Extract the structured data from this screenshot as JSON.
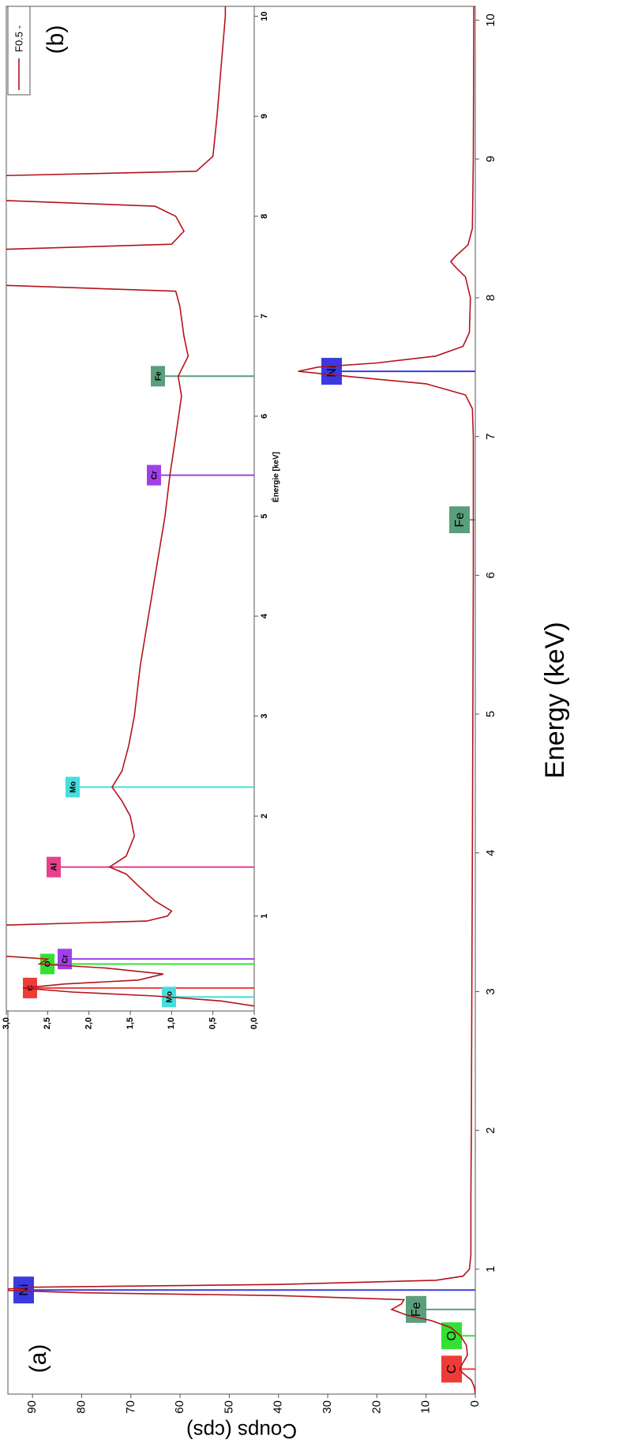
{
  "chart_data": [
    {
      "type": "line",
      "panel_label": "(a)",
      "x_label": "Energy (keV)",
      "y_label": "Coups (cps)",
      "x": [
        0.1,
        0.15,
        0.2,
        0.25,
        0.28,
        0.32,
        0.38,
        0.45,
        0.52,
        0.58,
        0.63,
        0.67,
        0.71,
        0.75,
        0.78,
        0.81,
        0.83,
        0.85,
        0.87,
        0.89,
        0.92,
        0.95,
        1.0,
        1.1,
        1.5,
        2,
        3,
        4,
        5,
        6,
        7,
        7.2,
        7.3,
        7.38,
        7.43,
        7.47,
        7.5,
        7.53,
        7.58,
        7.65,
        7.75,
        8.0,
        8.15,
        8.22,
        8.26,
        8.3,
        8.38,
        8.5,
        9,
        10,
        10.1
      ],
      "series": [
        {
          "color": "#b3141a",
          "values": [
            0,
            0.2,
            0.8,
            2.5,
            3.2,
            2.6,
            1.6,
            1.8,
            3.0,
            5,
            9,
            14,
            17,
            15,
            14.5,
            40,
            80,
            98,
            90,
            40,
            8,
            2.5,
            1.2,
            0.9,
            0.9,
            0.8,
            0.7,
            0.6,
            0.5,
            0.4,
            0.4,
            0.6,
            2,
            10,
            25,
            36,
            32,
            20,
            8,
            2.5,
            1.2,
            1.0,
            2,
            4,
            5,
            4,
            1.5,
            0.6,
            0.4,
            0.3,
            0.3
          ]
        }
      ],
      "xlim": [
        0.1,
        10.1
      ],
      "ylim": [
        0,
        95
      ],
      "xticks": [
        1,
        2,
        3,
        4,
        5,
        6,
        7,
        8,
        9,
        10
      ],
      "yticks": [
        0,
        10,
        20,
        30,
        40,
        50,
        60,
        70,
        80,
        90
      ],
      "markers": [
        {
          "label": "C",
          "energy": 0.28,
          "color": "#ee3b36"
        },
        {
          "label": "O",
          "energy": 0.52,
          "color": "#33e033"
        },
        {
          "label": "Fe",
          "energy": 0.71,
          "color": "#5b9e7c"
        },
        {
          "label": "Ni",
          "energy": 0.85,
          "color": "#3a3ae0"
        },
        {
          "label": "Fe",
          "energy": 6.4,
          "color": "#5b9e7c"
        },
        {
          "label": "Ni",
          "energy": 7.47,
          "color": "#3a3ae0"
        }
      ]
    },
    {
      "type": "line",
      "panel_label": "(b)",
      "x_label": "Énergie [keV]",
      "legend": "top-right",
      "x": [
        0.1,
        0.15,
        0.2,
        0.24,
        0.28,
        0.32,
        0.36,
        0.42,
        0.48,
        0.52,
        0.57,
        0.62,
        0.9,
        0.95,
        1.0,
        1.05,
        1.15,
        1.3,
        1.42,
        1.49,
        1.6,
        1.8,
        2.0,
        2.15,
        2.29,
        2.45,
        2.7,
        3.0,
        3.5,
        4.0,
        4.5,
        5.0,
        5.41,
        5.8,
        6.2,
        6.4,
        6.6,
        6.8,
        7.1,
        7.25,
        7.32,
        7.66,
        7.72,
        7.85,
        8.0,
        8.1,
        8.17,
        8.4,
        8.45,
        8.6,
        9.0,
        9.5,
        10.0,
        10.1
      ],
      "series": [
        {
          "name": "F0.5 -",
          "color": "#b3141a",
          "values": [
            0,
            0.4,
            1.2,
            2.2,
            2.8,
            2.3,
            1.4,
            1.1,
            1.8,
            2.6,
            2.5,
            3.4,
            3.4,
            1.3,
            1.05,
            1.0,
            1.2,
            1.4,
            1.55,
            1.75,
            1.55,
            1.45,
            1.5,
            1.6,
            1.72,
            1.6,
            1.52,
            1.45,
            1.38,
            1.28,
            1.18,
            1.08,
            1.02,
            0.95,
            0.88,
            0.92,
            0.8,
            0.85,
            0.9,
            0.95,
            3.4,
            3.4,
            1.0,
            0.85,
            0.95,
            1.2,
            3.4,
            3.4,
            0.7,
            0.5,
            0.45,
            0.4,
            0.35,
            0.35
          ]
        }
      ],
      "xlim": [
        0.05,
        10.1
      ],
      "ylim": [
        0,
        3
      ],
      "xticks": [
        1,
        2,
        3,
        4,
        5,
        6,
        7,
        8,
        9,
        10
      ],
      "yticks": [
        {
          "value": 0,
          "label": "0,0"
        },
        {
          "value": 0.5,
          "label": "0,5"
        },
        {
          "value": 1,
          "label": "1,0"
        },
        {
          "value": 1.5,
          "label": "1,5"
        },
        {
          "value": 2,
          "label": "2,0"
        },
        {
          "value": 2.5,
          "label": "2,5"
        },
        {
          "value": 3,
          "label": "3,0"
        }
      ],
      "markers": [
        {
          "label": "C",
          "energy": 0.28,
          "color": "#ee3b36"
        },
        {
          "label": "Mo",
          "energy": 0.19,
          "color": "#44dede"
        },
        {
          "label": "O",
          "energy": 0.52,
          "color": "#33e033"
        },
        {
          "label": "Cr",
          "energy": 0.57,
          "color": "#a040e8"
        },
        {
          "label": "Al",
          "energy": 1.49,
          "color": "#e8408c"
        },
        {
          "label": "Mo",
          "energy": 2.29,
          "color": "#44dede"
        },
        {
          "label": "Cr",
          "energy": 5.41,
          "color": "#a040e8"
        },
        {
          "label": "Fe",
          "energy": 6.4,
          "color": "#5b9e7c"
        }
      ]
    }
  ]
}
